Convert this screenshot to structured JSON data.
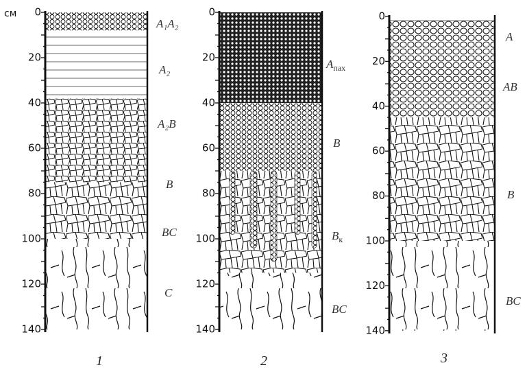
{
  "unit": "см",
  "columns": [
    {
      "number": "1",
      "depth_ticks": [
        0,
        20,
        40,
        60,
        80,
        100,
        120,
        140
      ],
      "horizons": [
        {
          "text": "A₁A₂"
        },
        {
          "text": "A₂"
        },
        {
          "text": "A₂B"
        },
        {
          "text": "B"
        },
        {
          "text": "BC"
        },
        {
          "text": "C"
        }
      ]
    },
    {
      "number": "2",
      "depth_ticks": [
        0,
        20,
        40,
        60,
        80,
        100,
        120,
        140
      ],
      "horizons": [
        {
          "text": "A",
          "sub": "пах"
        },
        {
          "text": "B"
        },
        {
          "text": "B",
          "sub": "к"
        },
        {
          "text": "BC"
        }
      ]
    },
    {
      "number": "3",
      "depth_ticks": [
        0,
        20,
        40,
        60,
        80,
        100,
        120,
        140
      ],
      "horizons": [
        {
          "text": "A"
        },
        {
          "text": "AB"
        },
        {
          "text": "B"
        },
        {
          "text": "BC"
        }
      ]
    }
  ]
}
